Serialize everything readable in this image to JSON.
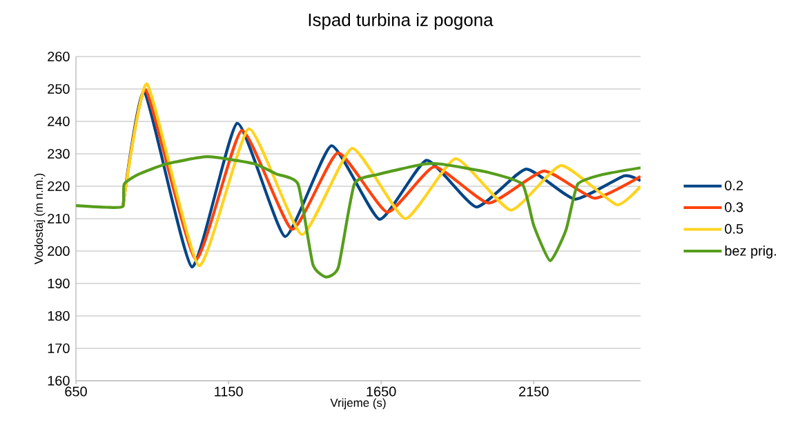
{
  "chart_data": {
    "type": "line",
    "title": "Ispad turbina iz pogona",
    "xlabel": "Vrijeme (s)",
    "ylabel": "Vodostaj (m n.m.)",
    "xlim": [
      650,
      2500
    ],
    "ylim": [
      160,
      260
    ],
    "xticks": [
      650,
      1150,
      1650,
      2150
    ],
    "yticks": [
      160,
      170,
      180,
      190,
      200,
      210,
      220,
      230,
      240,
      250,
      260
    ],
    "grid": "y",
    "legend": "right",
    "marker": "none",
    "line_style": "solid",
    "series": [
      {
        "name": "0.2",
        "color": "#004586",
        "x": [
          804,
          874,
          1030,
          1178,
          1335,
          1487,
          1645,
          1799,
          1962,
          2125,
          2285,
          2446,
          2500
        ],
        "values": [
          213.8,
          249.1,
          195.1,
          239.4,
          204.5,
          232.5,
          209.8,
          228,
          213.6,
          225.3,
          216,
          223.2,
          221.7
        ]
      },
      {
        "name": "0.3",
        "color": "#ff420e",
        "x": [
          804,
          878,
          1042,
          1193,
          1358,
          1508,
          1670,
          1824,
          2002,
          2184,
          2349,
          2500
        ],
        "values": [
          213.8,
          249.8,
          197.5,
          237.2,
          206.7,
          230.3,
          212,
          226,
          214.8,
          224.7,
          216.3,
          223
        ]
      },
      {
        "name": "0.5",
        "color": "#ffd320",
        "x": [
          804,
          883,
          1053,
          1216,
          1390,
          1555,
          1729,
          1894,
          2075,
          2240,
          2421,
          2500
        ],
        "values": [
          213.8,
          251.5,
          195.5,
          237.7,
          205.1,
          231.7,
          210,
          228.5,
          212.6,
          226.4,
          214.3,
          220
        ]
      },
      {
        "name": "bez prig.",
        "color": "#579d1c",
        "x": [
          650,
          750,
          804,
          808,
          853,
          944,
          1080,
          1231,
          1306,
          1378,
          1426,
          1469,
          1510,
          1562,
          1638,
          1788,
          1849,
          2000,
          2113,
          2150,
          2204,
          2256,
          2294,
          2376,
          2500
        ],
        "values": [
          214,
          213.5,
          213.8,
          220.6,
          223.6,
          226.8,
          229.1,
          227,
          223.8,
          220.6,
          196,
          192,
          195,
          220.6,
          223.6,
          226.8,
          226.8,
          224.3,
          220.6,
          207.9,
          197,
          206.6,
          220.6,
          223.6,
          225.7
        ]
      }
    ]
  }
}
